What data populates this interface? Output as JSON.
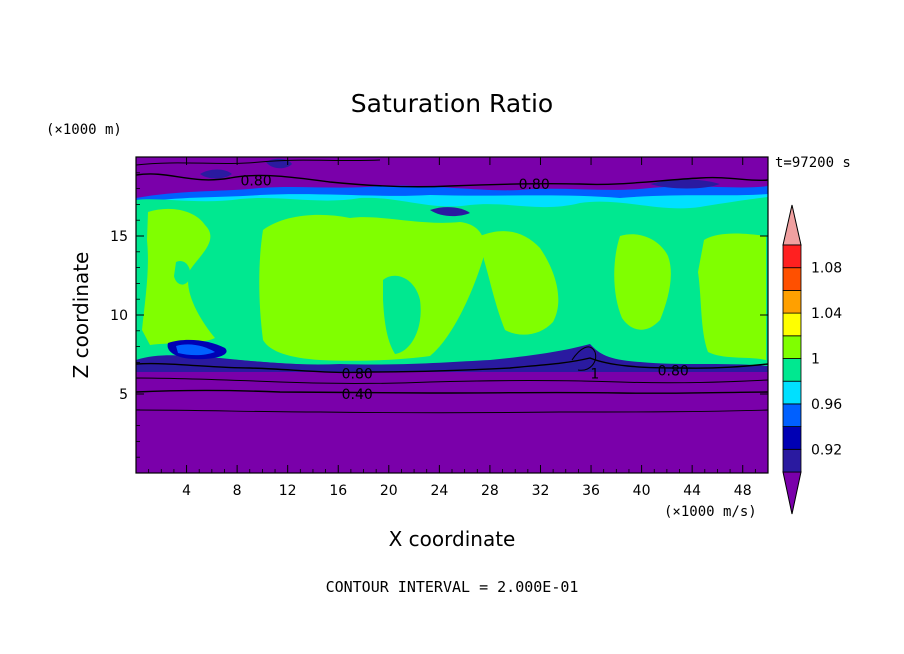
{
  "chart_data": {
    "type": "heatmap",
    "title": "Saturation Ratio",
    "xlabel": "X coordinate",
    "ylabel": "Z coordinate",
    "x_unit": "(×1000 m/s)",
    "y_unit": "(×1000 m)",
    "time_label": "t=97200 s",
    "footer": "CONTOUR INTERVAL = 2.000E-01",
    "xlim": [
      0,
      50
    ],
    "ylim": [
      0,
      20
    ],
    "x_ticks": [
      4,
      8,
      12,
      16,
      20,
      24,
      28,
      32,
      36,
      40,
      44,
      48
    ],
    "y_ticks": [
      5,
      10,
      15
    ],
    "colorbar": {
      "levels": [
        0.9,
        0.92,
        0.94,
        0.96,
        0.98,
        1.0,
        1.02,
        1.04,
        1.06,
        1.08,
        1.1
      ],
      "labels": [
        "1.08",
        "1.04",
        "1",
        "0.96",
        "0.92"
      ],
      "colors": [
        "#7a00aa",
        "#2a1aa0",
        "#0000b4",
        "#0060ff",
        "#00e0ff",
        "#00e890",
        "#80ff00",
        "#ffff00",
        "#ffa000",
        "#ff5000",
        "#ff2020",
        "#f0a0a0"
      ]
    },
    "contour_labels": [
      {
        "text": "0.80",
        "x": 9.5,
        "z": 18.5
      },
      {
        "text": "0.80",
        "x": 31.5,
        "z": 18.3
      },
      {
        "text": "0.80",
        "x": 17.5,
        "z": 6.3
      },
      {
        "text": "0.40",
        "x": 17.5,
        "z": 5.0
      },
      {
        "text": "1",
        "x": 36.3,
        "z": 6.3
      },
      {
        "text": "0.80",
        "x": 42.5,
        "z": 6.5
      }
    ]
  }
}
